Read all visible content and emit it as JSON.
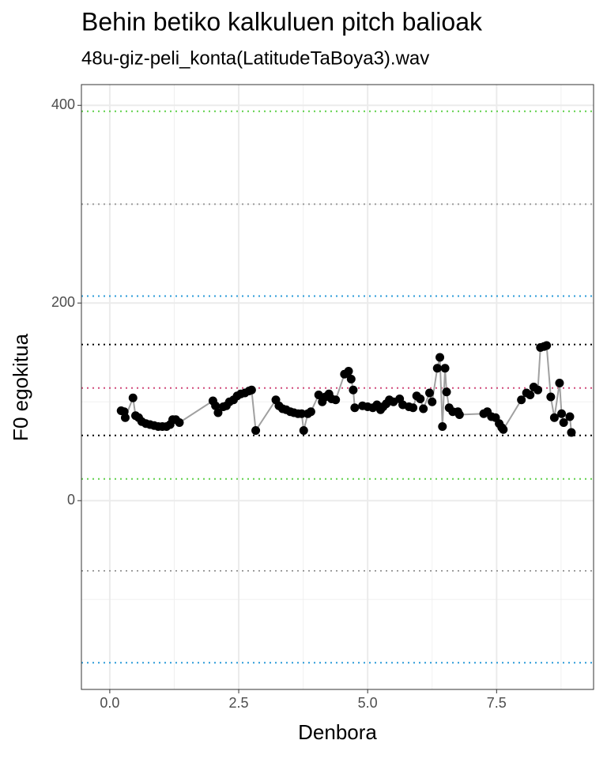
{
  "chart_data": {
    "type": "line",
    "title": "Behin betiko kalkuluen pitch balioak",
    "subtitle": "48u-giz-peli_konta(LatitudeTaBoya3).wav",
    "x_label": "Denbora",
    "y_label": "F0 egokitua",
    "xlim": [
      -0.55,
      9.38
    ],
    "ylim": [
      -191,
      421
    ],
    "xticks": [
      {
        "value": 0,
        "label": "0.0"
      },
      {
        "value": 2.5,
        "label": "2.5"
      },
      {
        "value": 5,
        "label": "5.0"
      },
      {
        "value": 7.5,
        "label": "7.5"
      }
    ],
    "yticks": [
      0,
      200,
      400
    ],
    "x_minor_grid": [
      1.25,
      3.75,
      6.25,
      8.75
    ],
    "y_minor_grid": [
      -100,
      100,
      300
    ],
    "grid": true,
    "line_color": "#a0a0a0",
    "point_color": "#000000",
    "reference_lines": [
      {
        "value": 394,
        "color": "#5fd04a"
      },
      {
        "value": 300,
        "color": "#9e9e9e"
      },
      {
        "value": 207,
        "color": "#2b9bd8"
      },
      {
        "value": 158,
        "color": "#000000"
      },
      {
        "value": 114,
        "color": "#d04a7a"
      },
      {
        "value": 66,
        "color": "#000000"
      },
      {
        "value": 22,
        "color": "#5fd04a"
      },
      {
        "value": -71,
        "color": "#9e9e9e"
      },
      {
        "value": -164,
        "color": "#2b9bd8"
      }
    ],
    "x": [
      0.22,
      0.28,
      0.3,
      0.45,
      0.5,
      0.56,
      0.62,
      0.7,
      0.78,
      0.86,
      0.94,
      1.02,
      1.1,
      1.17,
      1.22,
      1.28,
      1.35,
      2.0,
      2.05,
      2.1,
      2.2,
      2.26,
      2.32,
      2.4,
      2.47,
      2.54,
      2.62,
      2.7,
      2.75,
      2.83,
      3.22,
      3.28,
      3.35,
      3.42,
      3.5,
      3.57,
      3.65,
      3.72,
      3.76,
      3.84,
      3.9,
      4.05,
      4.12,
      4.18,
      4.25,
      4.3,
      4.38,
      4.55,
      4.63,
      4.68,
      4.72,
      4.75,
      4.9,
      5.0,
      5.1,
      5.18,
      5.25,
      5.3,
      5.36,
      5.42,
      5.5,
      5.62,
      5.68,
      5.8,
      5.88,
      5.95,
      6.02,
      6.08,
      6.2,
      6.25,
      6.35,
      6.4,
      6.45,
      6.5,
      6.53,
      6.58,
      6.65,
      6.75,
      6.78,
      7.25,
      7.32,
      7.4,
      7.48,
      7.55,
      7.6,
      7.63,
      7.98,
      8.08,
      8.15,
      8.22,
      8.3,
      8.35,
      8.42,
      8.47,
      8.55,
      8.62,
      8.72,
      8.76,
      8.8,
      8.92,
      8.95
    ],
    "y": [
      91,
      90,
      84,
      104,
      86,
      84,
      80,
      78,
      77,
      76,
      75,
      75,
      75,
      77,
      82,
      82,
      79,
      101,
      96,
      89,
      95,
      96,
      100,
      102,
      106,
      108,
      109,
      111,
      112,
      71,
      102,
      96,
      93,
      92,
      90,
      89,
      88,
      88,
      71,
      88,
      90,
      107,
      100,
      105,
      108,
      103,
      102,
      128,
      131,
      123,
      112,
      94,
      96,
      95,
      94,
      97,
      92,
      95,
      98,
      102,
      100,
      103,
      97,
      95,
      94,
      106,
      103,
      93,
      109,
      100,
      134,
      145,
      75,
      134,
      110,
      94,
      90,
      90,
      87,
      88,
      90,
      85,
      84,
      78,
      74,
      72,
      102,
      109,
      107,
      115,
      112,
      155,
      156,
      157,
      105,
      84,
      119,
      88,
      79,
      85,
      69
    ]
  }
}
